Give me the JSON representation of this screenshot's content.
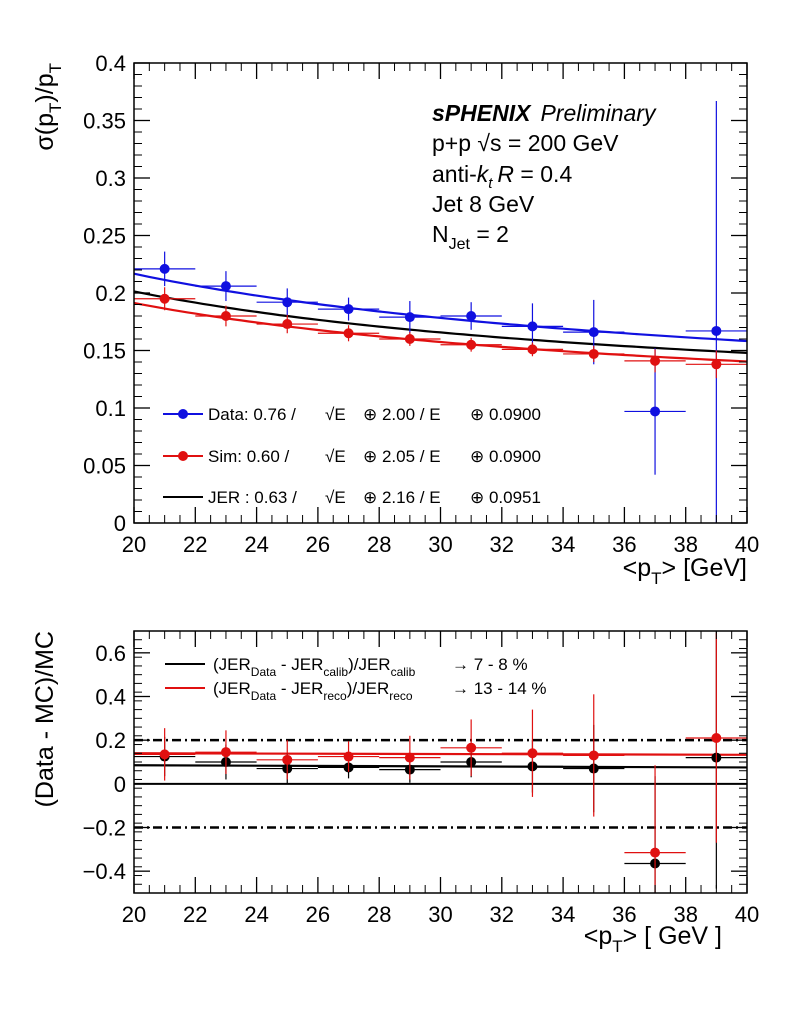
{
  "chart_data": [
    {
      "type": "scatter",
      "title": "",
      "xlabel_parts": [
        "<p",
        "T",
        "> [GeV]"
      ],
      "ylabel_parts": [
        "σ(p",
        "T",
        ")/p",
        "T"
      ],
      "xlim": [
        20,
        40
      ],
      "ylim": [
        0,
        0.4
      ],
      "x_ticks": [
        "20",
        "22",
        "24",
        "26",
        "28",
        "30",
        "32",
        "34",
        "36",
        "38",
        "40"
      ],
      "y_ticks": [
        "0",
        "0.05",
        "0.1",
        "0.15",
        "0.2",
        "0.25",
        "0.3",
        "0.35",
        "0.4"
      ],
      "annotations": {
        "experiment": "sPHENIX",
        "status": "Preliminary",
        "line1": "p+p  √s = 200 GeV",
        "line2_prefix": "anti-",
        "line2_k": "k",
        "line2_sub": "t",
        "line2_R": "R",
        "line2_suffix": " = 0.4",
        "line3": "Jet 8 GeV",
        "line4_prefix": "N",
        "line4_sub": "Jet",
        "line4_suffix": " = 2"
      },
      "legend": {
        "position": "bottom-left",
        "entries": [
          {
            "label": "Data: 0.76 /",
            "sqrt": "√E",
            "term2": "⊕ 2.00 / E",
            "term3": "⊕ 0.0900",
            "color": "#1010e0",
            "marker": true
          },
          {
            "label": "Sim: 0.60 /",
            "sqrt": "√E",
            "term2": "⊕ 2.05 / E",
            "term3": "⊕ 0.0900",
            "color": "#e01010",
            "marker": true
          },
          {
            "label": "JER : 0.63 /",
            "sqrt": "√E",
            "term2": "⊕ 2.16 / E",
            "term3": "⊕ 0.0951",
            "color": "#000000",
            "marker": false
          }
        ]
      },
      "series": [
        {
          "name": "Data",
          "color": "#1010e0",
          "x": [
            21,
            23,
            25,
            27,
            29,
            31,
            33,
            35,
            37,
            39
          ],
          "y": [
            0.221,
            0.206,
            0.192,
            0.186,
            0.179,
            0.18,
            0.171,
            0.166,
            0.097,
            0.167
          ],
          "yerr": [
            0.015,
            0.013,
            0.012,
            0.01,
            0.014,
            0.012,
            0.02,
            0.028,
            0.055,
            0.2
          ]
        },
        {
          "name": "Sim",
          "color": "#e01010",
          "x": [
            21,
            23,
            25,
            27,
            29,
            31,
            33,
            35,
            37,
            39
          ],
          "y": [
            0.195,
            0.18,
            0.173,
            0.165,
            0.16,
            0.155,
            0.151,
            0.147,
            0.141,
            0.138
          ],
          "yerr": [
            0.01,
            0.009,
            0.008,
            0.007,
            0.006,
            0.006,
            0.006,
            0.007,
            0.01,
            0.012
          ]
        }
      ],
      "fits": [
        {
          "name": "Data fit",
          "color": "#1010e0",
          "a": 0.76,
          "b": 2.0,
          "c": 0.09
        },
        {
          "name": "Sim fit",
          "color": "#e01010",
          "a": 0.6,
          "b": 2.05,
          "c": 0.09
        },
        {
          "name": "JER",
          "color": "#000000",
          "a": 0.63,
          "b": 2.16,
          "c": 0.0951
        }
      ],
      "x_bin_halfwidth": 1
    },
    {
      "type": "scatter",
      "xlabel_parts": [
        "<p",
        "T",
        "> [ GeV ]"
      ],
      "ylabel": "(Data - MC)/MC",
      "xlim": [
        20,
        40
      ],
      "ylim": [
        -0.5,
        0.7
      ],
      "x_ticks": [
        "20",
        "22",
        "24",
        "26",
        "28",
        "30",
        "32",
        "34",
        "36",
        "38",
        "40"
      ],
      "y_ticks": [
        "−0.4",
        "−0.2",
        "0",
        "0.2",
        "0.4",
        "0.6"
      ],
      "y_tick_values": [
        -0.4,
        -0.2,
        0,
        0.2,
        0.4,
        0.6
      ],
      "reference_lines": [
        0.2,
        -0.2
      ],
      "legend": {
        "position": "top-left",
        "entries": [
          {
            "color": "#000000",
            "p1": "(JER",
            "s1": "Data",
            "p2": " - JER",
            "s2": "calib",
            "p3": ")/JER",
            "s3": "calib",
            "result": "→  7 -  8 %"
          },
          {
            "color": "#e01010",
            "p1": "(JER",
            "s1": "Data",
            "p2": " - JER",
            "s2": "reco",
            "p3": ")/JER",
            "s3": "reco",
            "result": "→ 13 - 14 %"
          }
        ]
      },
      "series": [
        {
          "name": "calib",
          "color": "#000000",
          "x": [
            21,
            23,
            25,
            27,
            29,
            31,
            33,
            35,
            37,
            39
          ],
          "y": [
            0.125,
            0.1,
            0.07,
            0.075,
            0.065,
            0.1,
            0.08,
            0.07,
            -0.365,
            0.12
          ],
          "yerr": [
            0.09,
            0.08,
            0.07,
            0.05,
            0.06,
            0.07,
            0.12,
            0.2,
            0.4,
            0.6
          ]
        },
        {
          "name": "reco",
          "color": "#e01010",
          "x": [
            21,
            23,
            25,
            27,
            29,
            31,
            33,
            35,
            37,
            39
          ],
          "y": [
            0.135,
            0.145,
            0.11,
            0.125,
            0.12,
            0.165,
            0.14,
            0.13,
            -0.315,
            0.21
          ],
          "yerr": [
            0.12,
            0.1,
            0.09,
            0.07,
            0.1,
            0.13,
            0.2,
            0.28,
            0.4,
            0.48
          ]
        }
      ],
      "fits": [
        {
          "name": "calib fit",
          "color": "#000000",
          "y0": 0.085,
          "y1": 0.075
        },
        {
          "name": "reco fit",
          "color": "#e01010",
          "y0": 0.14,
          "y1": 0.133
        }
      ],
      "x_bin_halfwidth": 1
    }
  ]
}
